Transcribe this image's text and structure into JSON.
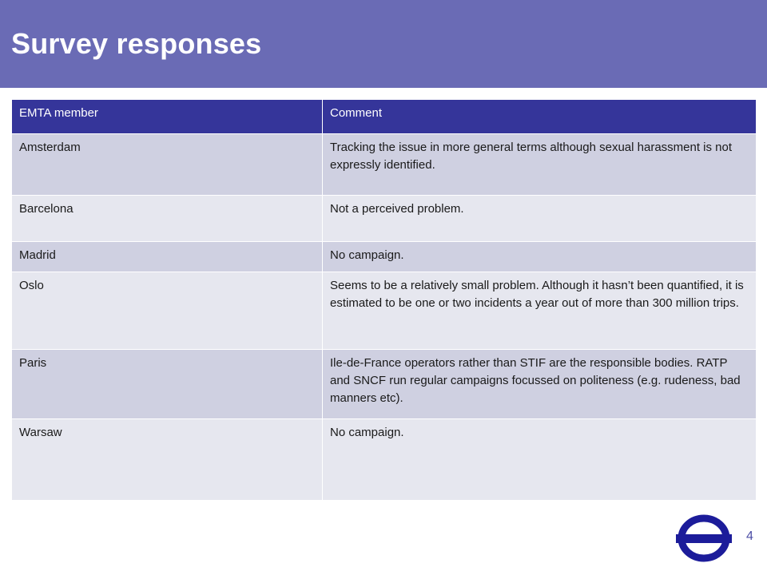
{
  "slide": {
    "title": "Survey responses",
    "page_number": "4",
    "colors": {
      "title_bar": "#6a6bb5",
      "table_header": "#35359a",
      "row_dark": "#cfd0e1",
      "row_light": "#e6e7ef",
      "logo": "#1c1c9a"
    }
  },
  "table": {
    "headers": [
      "EMTA member",
      "Comment"
    ],
    "rows": [
      {
        "member": "Amsterdam",
        "comment": "Tracking the issue in more general terms although sexual harassment is not expressly identified."
      },
      {
        "member": "Barcelona",
        "comment": "Not a perceived problem."
      },
      {
        "member": "Madrid",
        "comment": "No campaign."
      },
      {
        "member": "Oslo",
        "comment": "Seems to be a relatively small problem. Although it hasn’t been quantified, it is estimated to be one or two incidents a year out of more than 300 million trips."
      },
      {
        "member": "Paris",
        "comment": "Ile-de-France operators rather than STIF are the responsible bodies. RATP and SNCF run regular campaigns focussed on politeness (e.g. rudeness, bad manners etc)."
      },
      {
        "member": "Warsaw",
        "comment": "No campaign."
      }
    ]
  },
  "logo": {
    "icon": "roundel-icon"
  }
}
